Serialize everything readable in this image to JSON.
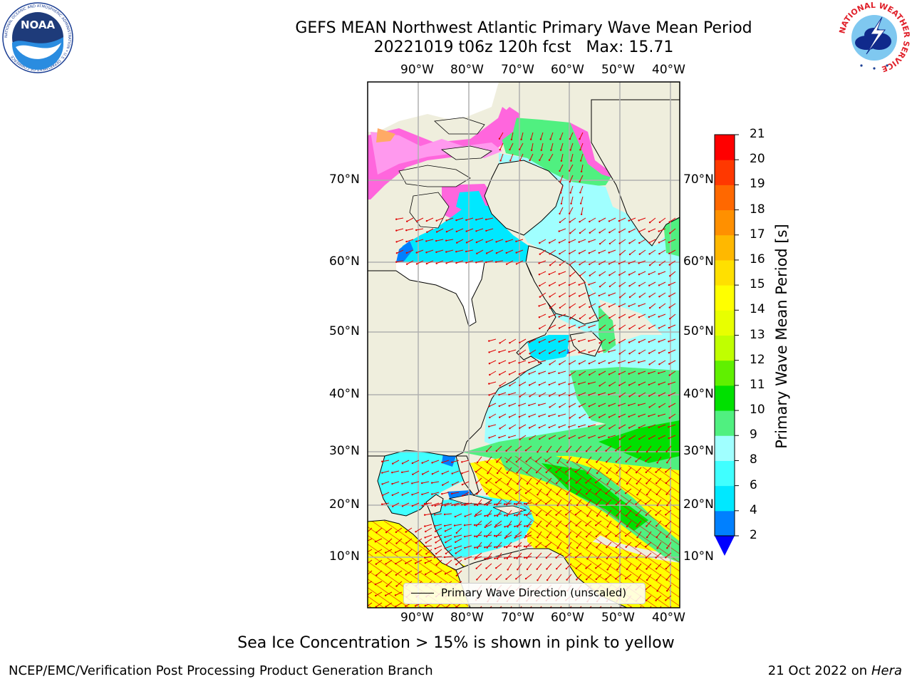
{
  "title": {
    "line1": "GEFS MEAN Northwest Atlantic Primary Wave Mean Period",
    "line2": "20221019 t06z 120h fcst   Max: 15.71"
  },
  "logos": {
    "left": {
      "name": "noaa-logo",
      "text": "NOAA",
      "ring_text": "NATIONAL OCEANIC AND ATMOSPHERIC ADMINISTRATION • U.S. DEPARTMENT OF COMMERCE"
    },
    "right": {
      "name": "nws-logo",
      "ring_text": "NATIONAL WEATHER SERVICE"
    }
  },
  "map": {
    "lon_labels": [
      "90°W",
      "80°W",
      "70°W",
      "60°W",
      "50°W",
      "40°W"
    ],
    "lat_labels": [
      "10°N",
      "20°N",
      "30°N",
      "40°N",
      "50°N",
      "60°N",
      "70°N"
    ],
    "land_color": "#efeedd",
    "legend_label": "Primary Wave Direction (unscaled)"
  },
  "colorbar": {
    "title": "Primary Wave Mean Period [s]",
    "tick_labels": [
      "2",
      "4",
      "6",
      "8",
      "9",
      "10",
      "11",
      "12",
      "13",
      "14",
      "15",
      "16",
      "17",
      "18",
      "19",
      "20",
      "21"
    ],
    "colors": [
      "#0080ff",
      "#00e8ff",
      "#40ffff",
      "#a0ffff",
      "#50f080",
      "#00e000",
      "#60f000",
      "#c0ff00",
      "#e8ff00",
      "#ffff00",
      "#ffe000",
      "#ffb800",
      "#ff9000",
      "#ff6800",
      "#ff3800",
      "#ff0000"
    ],
    "under_color": "#0000ff"
  },
  "subnote": "Sea Ice Concentration > 15% is shown in pink to yellow",
  "footer": {
    "left": "NCEP/EMC/Verification Post Processing Product Generation Branch",
    "right_date": "21 Oct 2022 on",
    "right_host": "Hera"
  }
}
